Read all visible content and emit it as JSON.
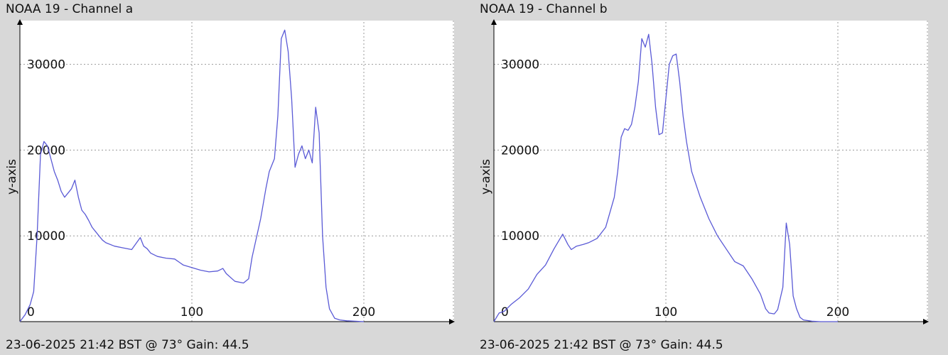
{
  "panels": [
    {
      "title": "NOAA 19 - Channel a",
      "footer": "23-06-2025 21:42 BST @ 73° Gain: 44.5"
    },
    {
      "title": "NOAA 19 - Channel b",
      "footer": "23-06-2025 21:42 BST @ 73° Gain: 44.5"
    }
  ],
  "colors": {
    "line": "#5a5ad6",
    "grid": "#9a9a9a",
    "background": "#ffffff",
    "page": "#d8d8d8"
  },
  "chart_data": [
    {
      "type": "line",
      "title": "NOAA 19 - Channel a",
      "xlabel": "",
      "ylabel": "y-axis",
      "xlim": [
        0,
        255
      ],
      "ylim": [
        0,
        35000
      ],
      "x_ticks": [
        0,
        100,
        200
      ],
      "y_ticks": [
        10000,
        20000,
        30000
      ],
      "grid": true,
      "series": [
        {
          "x": [
            0,
            3,
            6,
            8,
            10,
            12,
            14,
            16,
            18,
            20,
            22,
            24,
            26,
            28,
            30,
            32,
            34,
            36,
            38,
            40,
            42,
            44,
            46,
            48,
            50,
            55,
            60,
            65,
            70,
            72,
            74,
            76,
            80,
            85,
            90,
            95,
            100,
            105,
            110,
            115,
            118,
            120,
            125,
            130,
            133,
            135,
            140,
            143,
            145,
            148,
            150,
            152,
            154,
            156,
            158,
            160,
            162,
            164,
            166,
            168,
            170,
            172,
            174,
            176,
            178,
            180,
            183,
            186,
            190,
            195,
            200
          ],
          "values": [
            0,
            800,
            2000,
            3500,
            10000,
            19500,
            21000,
            20500,
            19000,
            17500,
            16500,
            15200,
            14500,
            15000,
            15500,
            16500,
            14500,
            13000,
            12500,
            11800,
            11000,
            10500,
            10000,
            9500,
            9200,
            8800,
            8600,
            8400,
            9800,
            8800,
            8500,
            8000,
            7600,
            7400,
            7300,
            6600,
            6300,
            6000,
            5800,
            5900,
            6200,
            5600,
            4700,
            4500,
            5000,
            7500,
            12000,
            15500,
            17500,
            19000,
            24000,
            33000,
            34000,
            31500,
            26000,
            18000,
            19500,
            20500,
            19000,
            20000,
            18500,
            25000,
            22000,
            10000,
            4000,
            1500,
            400,
            200,
            100,
            50,
            0
          ]
        }
      ]
    },
    {
      "type": "line",
      "title": "NOAA 19 - Channel b",
      "xlabel": "",
      "ylabel": "y-axis",
      "xlim": [
        0,
        255
      ],
      "ylim": [
        0,
        35000
      ],
      "x_ticks": [
        0,
        100,
        200
      ],
      "y_ticks": [
        10000,
        20000,
        30000
      ],
      "grid": true,
      "series": [
        {
          "x": [
            0,
            3,
            6,
            10,
            15,
            20,
            25,
            30,
            35,
            40,
            43,
            45,
            48,
            52,
            55,
            60,
            65,
            70,
            72,
            74,
            76,
            78,
            80,
            82,
            84,
            86,
            88,
            90,
            92,
            94,
            96,
            98,
            100,
            102,
            104,
            106,
            108,
            110,
            112,
            115,
            120,
            125,
            130,
            135,
            140,
            145,
            150,
            155,
            158,
            160,
            163,
            165,
            168,
            170,
            172,
            174,
            176,
            178,
            180,
            185,
            190,
            200
          ],
          "values": [
            0,
            1000,
            1200,
            2000,
            2800,
            3800,
            5500,
            6600,
            8500,
            10200,
            9000,
            8400,
            8800,
            9000,
            9200,
            9700,
            11000,
            14500,
            17500,
            21500,
            22500,
            22300,
            23000,
            25000,
            28000,
            33000,
            32000,
            33500,
            30000,
            25000,
            21800,
            22000,
            26000,
            30000,
            31000,
            31200,
            28000,
            24000,
            21000,
            17500,
            14500,
            12000,
            10000,
            8500,
            7000,
            6500,
            5000,
            3200,
            1500,
            1000,
            900,
            1400,
            4000,
            11500,
            9000,
            3000,
            1500,
            500,
            200,
            50,
            0,
            0
          ]
        }
      ]
    }
  ]
}
